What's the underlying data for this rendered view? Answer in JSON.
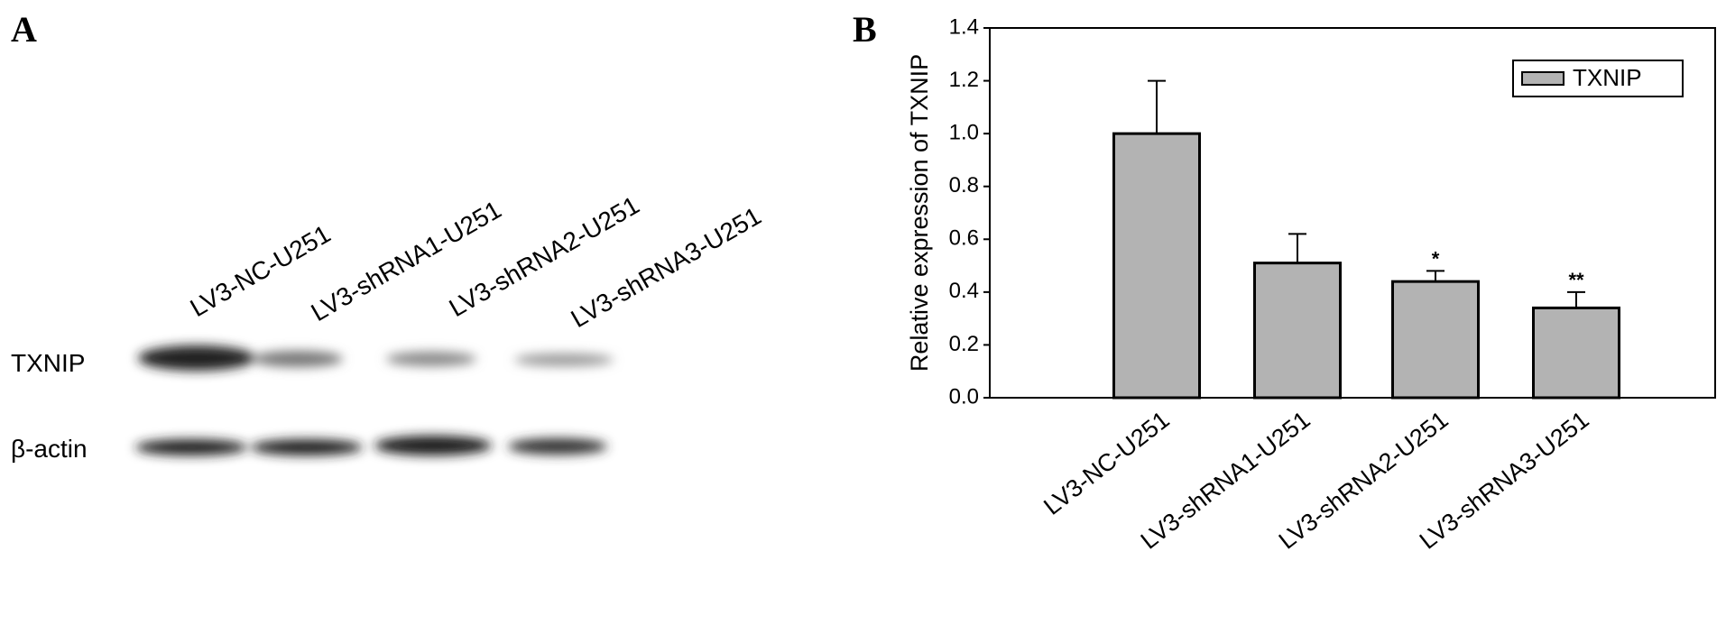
{
  "panel_a": {
    "panel_label": "A",
    "lanes": [
      "LV3-NC-U251",
      "LV3-shRNA1-U251",
      "LV3-shRNA2-U251",
      "LV3-shRNA3-U251"
    ],
    "rows": [
      "TXNIP",
      "β-actin"
    ]
  },
  "chart_data": {
    "type": "bar",
    "panel_label": "B",
    "ylabel": "Relative expression of TXNIP",
    "categories": [
      "LV3-NC-U251",
      "LV3-shRNA1-U251",
      "LV3-shRNA2-U251",
      "LV3-shRNA3-U251"
    ],
    "series": [
      {
        "name": "TXNIP",
        "color": "#b3b3b3",
        "values": [
          1.0,
          0.51,
          0.44,
          0.34
        ],
        "errors": [
          0.2,
          0.11,
          0.04,
          0.06
        ]
      }
    ],
    "annotations": [
      null,
      null,
      "*",
      "**"
    ],
    "ylim": [
      0,
      1.4
    ],
    "yticks": [
      {
        "value": 0,
        "label": "0.0"
      },
      {
        "value": 0.2,
        "label": "0.2"
      },
      {
        "value": 0.4,
        "label": "0.4"
      },
      {
        "value": 0.6,
        "label": "0.6"
      },
      {
        "value": 0.8,
        "label": "0.8"
      },
      {
        "value": 1.0,
        "label": "1.0"
      },
      {
        "value": 1.2,
        "label": "1.2"
      },
      {
        "value": 1.4,
        "label": "1.4"
      }
    ],
    "legend": "upper right"
  }
}
